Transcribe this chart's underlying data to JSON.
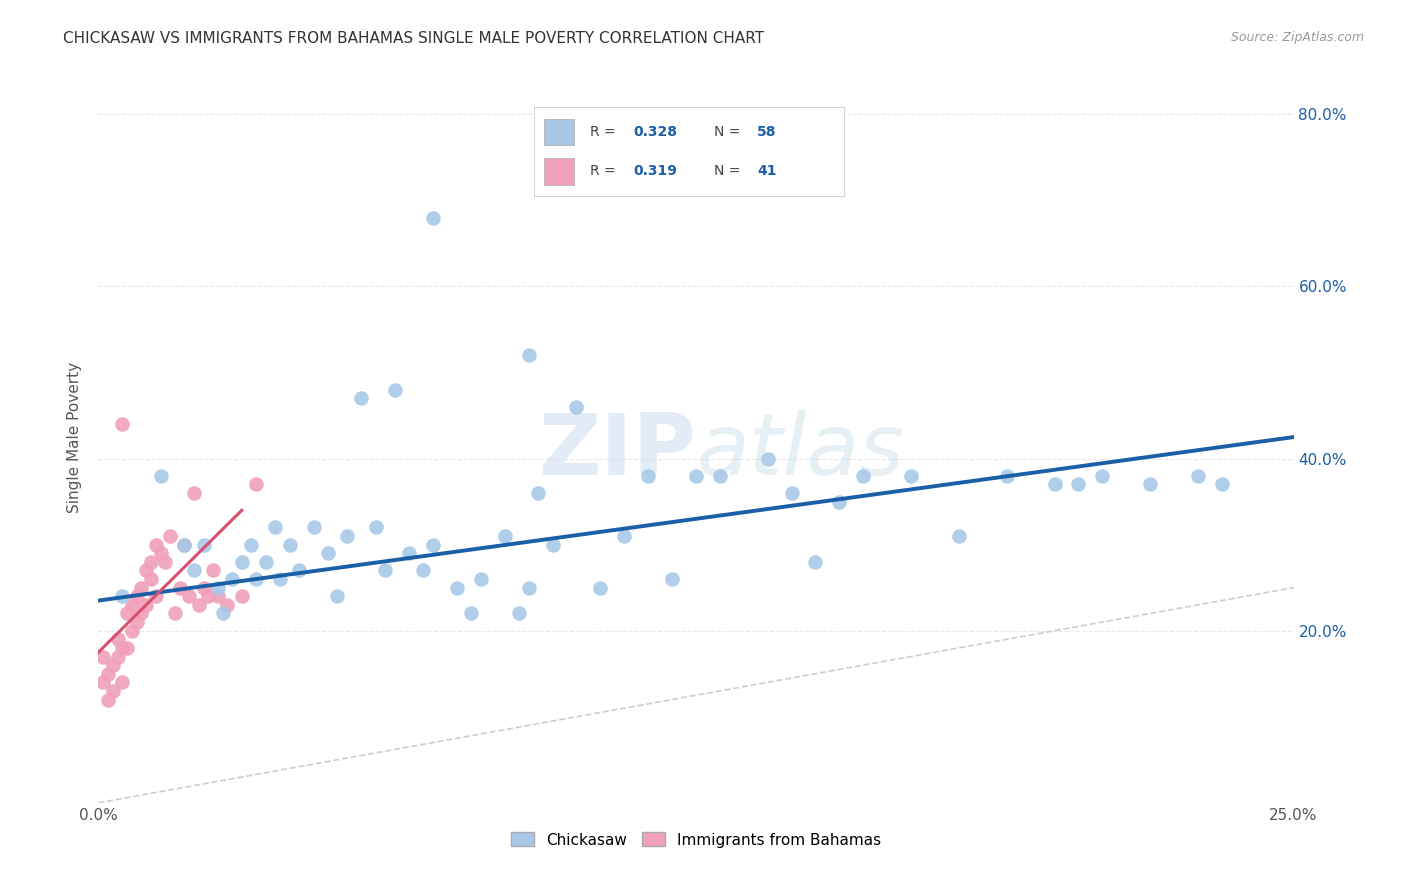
{
  "title": "CHICKASAW VS IMMIGRANTS FROM BAHAMAS SINGLE MALE POVERTY CORRELATION CHART",
  "source": "Source: ZipAtlas.com",
  "ylabel": "Single Male Poverty",
  "xlim": [
    0,
    0.25
  ],
  "ylim": [
    0,
    0.85
  ],
  "blue_scatter_x": [
    0.005,
    0.013,
    0.018,
    0.02,
    0.022,
    0.025,
    0.026,
    0.028,
    0.03,
    0.032,
    0.033,
    0.035,
    0.037,
    0.038,
    0.04,
    0.042,
    0.045,
    0.048,
    0.05,
    0.052,
    0.055,
    0.058,
    0.06,
    0.062,
    0.065,
    0.068,
    0.07,
    0.075,
    0.078,
    0.08,
    0.085,
    0.088,
    0.09,
    0.092,
    0.095,
    0.1,
    0.105,
    0.11,
    0.115,
    0.12,
    0.125,
    0.13,
    0.14,
    0.145,
    0.15,
    0.155,
    0.16,
    0.17,
    0.18,
    0.19,
    0.2,
    0.205,
    0.21,
    0.22,
    0.23,
    0.235,
    0.07,
    0.09
  ],
  "blue_scatter_y": [
    0.24,
    0.38,
    0.3,
    0.27,
    0.3,
    0.25,
    0.22,
    0.26,
    0.28,
    0.3,
    0.26,
    0.28,
    0.32,
    0.26,
    0.3,
    0.27,
    0.32,
    0.29,
    0.24,
    0.31,
    0.47,
    0.32,
    0.27,
    0.48,
    0.29,
    0.27,
    0.3,
    0.25,
    0.22,
    0.26,
    0.31,
    0.22,
    0.25,
    0.36,
    0.3,
    0.46,
    0.25,
    0.31,
    0.38,
    0.26,
    0.38,
    0.38,
    0.4,
    0.36,
    0.28,
    0.35,
    0.38,
    0.38,
    0.31,
    0.38,
    0.37,
    0.37,
    0.38,
    0.37,
    0.38,
    0.37,
    0.68,
    0.52
  ],
  "pink_scatter_x": [
    0.001,
    0.001,
    0.002,
    0.002,
    0.003,
    0.003,
    0.004,
    0.004,
    0.005,
    0.005,
    0.006,
    0.006,
    0.007,
    0.007,
    0.008,
    0.008,
    0.009,
    0.009,
    0.01,
    0.01,
    0.011,
    0.011,
    0.012,
    0.012,
    0.013,
    0.014,
    0.015,
    0.016,
    0.017,
    0.018,
    0.019,
    0.02,
    0.021,
    0.022,
    0.023,
    0.024,
    0.025,
    0.027,
    0.03,
    0.033,
    0.005
  ],
  "pink_scatter_y": [
    0.17,
    0.14,
    0.15,
    0.12,
    0.16,
    0.13,
    0.17,
    0.19,
    0.18,
    0.14,
    0.22,
    0.18,
    0.23,
    0.2,
    0.24,
    0.21,
    0.25,
    0.22,
    0.27,
    0.23,
    0.28,
    0.26,
    0.3,
    0.24,
    0.29,
    0.28,
    0.31,
    0.22,
    0.25,
    0.3,
    0.24,
    0.36,
    0.23,
    0.25,
    0.24,
    0.27,
    0.24,
    0.23,
    0.24,
    0.37,
    0.44
  ],
  "blue_R": 0.328,
  "blue_N": 58,
  "pink_R": 0.319,
  "pink_N": 41,
  "blue_line_x": [
    0.0,
    0.25
  ],
  "blue_line_y": [
    0.235,
    0.425
  ],
  "pink_line_x": [
    0.0,
    0.03
  ],
  "pink_line_y": [
    0.175,
    0.34
  ],
  "blue_color": "#a8c8e8",
  "pink_color": "#f0a0b8",
  "blue_line_color": "#1a5fa8",
  "pink_line_color": "#d85070",
  "diagonal_color": "#c8c8c8",
  "watermark_color": "#ddeaf8",
  "background_color": "#ffffff",
  "grid_color": "#e8e8e8"
}
